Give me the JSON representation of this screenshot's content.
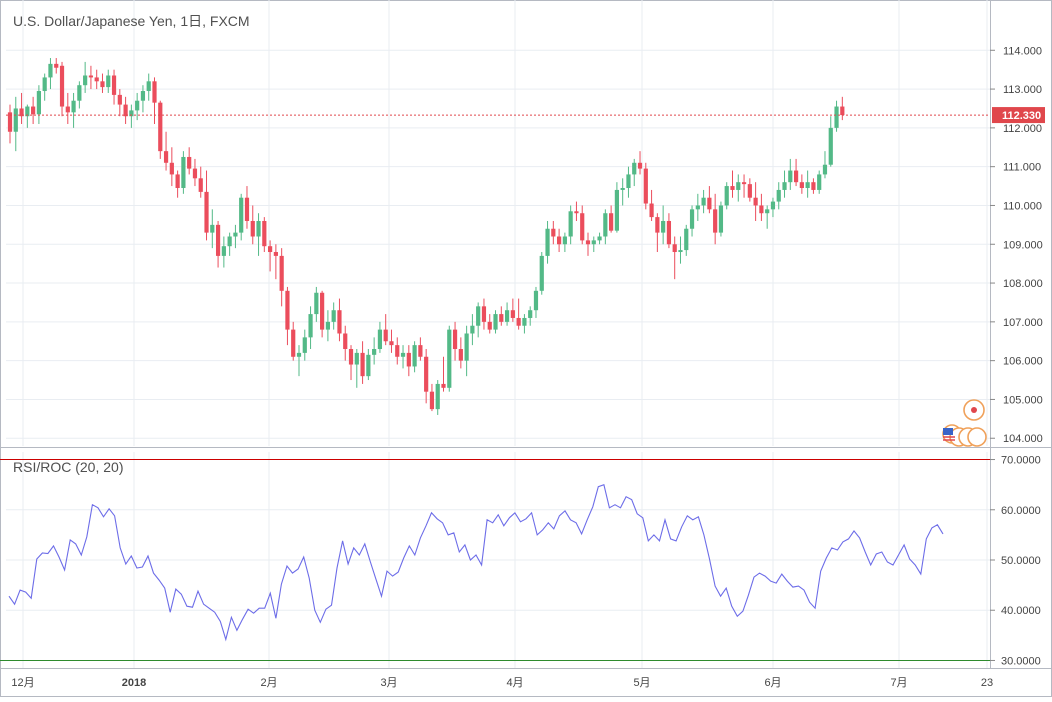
{
  "title": "U.S. Dollar/Japanese Yen, 1日, FXCM",
  "last_price_label": "112.330",
  "colors": {
    "up": "#53b987",
    "down": "#eb4d5c",
    "grid": "#e9edf2",
    "rsi_line": "#6d6de8",
    "overbought": "#cc0000",
    "oversold": "#2e8b2e",
    "last_price": "#e0474c"
  },
  "chart_data": [
    {
      "type": "candlestick",
      "title": "U.S. Dollar/Japanese Yen, 1日, FXCM",
      "ylim": [
        103.8,
        114.6
      ],
      "y_ticks": [
        "114.000",
        "113.000",
        "112.000",
        "111.000",
        "110.000",
        "109.000",
        "108.000",
        "107.000",
        "106.000",
        "105.000",
        "104.000"
      ],
      "x_tick_labels": [
        "12月",
        "2018",
        "2月",
        "3月",
        "4月",
        "5月",
        "6月",
        "7月",
        "23"
      ],
      "last_price": 112.33,
      "grid": true,
      "candles": [
        [
          112.4,
          112.6,
          111.6,
          111.9
        ],
        [
          111.9,
          112.8,
          111.4,
          112.5
        ],
        [
          112.5,
          112.9,
          112.1,
          112.3
        ],
        [
          112.3,
          112.6,
          112.0,
          112.55
        ],
        [
          112.55,
          112.8,
          112.1,
          112.35
        ],
        [
          112.35,
          113.1,
          112.1,
          112.95
        ],
        [
          112.95,
          113.4,
          112.7,
          113.3
        ],
        [
          113.3,
          113.8,
          113.0,
          113.65
        ],
        [
          113.65,
          113.8,
          113.4,
          113.55
        ],
        [
          113.6,
          113.7,
          112.3,
          112.55
        ],
        [
          112.55,
          112.9,
          112.1,
          112.4
        ],
        [
          112.4,
          112.9,
          112.0,
          112.7
        ],
        [
          112.7,
          113.2,
          112.5,
          113.1
        ],
        [
          113.1,
          113.7,
          112.9,
          113.35
        ],
        [
          113.35,
          113.6,
          113.0,
          113.3
        ],
        [
          113.3,
          113.5,
          113.0,
          113.2
        ],
        [
          113.2,
          113.4,
          112.9,
          113.05
        ],
        [
          113.05,
          113.5,
          112.9,
          113.35
        ],
        [
          113.35,
          113.5,
          112.6,
          112.85
        ],
        [
          112.85,
          113.0,
          112.3,
          112.6
        ],
        [
          112.6,
          112.8,
          112.1,
          112.3
        ],
        [
          112.3,
          112.6,
          112.0,
          112.45
        ],
        [
          112.45,
          112.9,
          112.2,
          112.7
        ],
        [
          112.7,
          113.1,
          112.4,
          112.95
        ],
        [
          112.95,
          113.4,
          112.7,
          113.2
        ],
        [
          113.2,
          113.3,
          112.1,
          112.65
        ],
        [
          112.65,
          112.7,
          111.2,
          111.4
        ],
        [
          111.4,
          111.9,
          110.9,
          111.1
        ],
        [
          111.1,
          111.5,
          110.5,
          110.8
        ],
        [
          110.8,
          110.9,
          110.2,
          110.45
        ],
        [
          110.45,
          111.4,
          110.3,
          111.25
        ],
        [
          111.25,
          111.5,
          110.8,
          110.95
        ],
        [
          110.95,
          111.2,
          110.5,
          110.7
        ],
        [
          110.7,
          111.0,
          110.2,
          110.35
        ],
        [
          110.35,
          110.9,
          109.1,
          109.3
        ],
        [
          109.3,
          109.9,
          108.9,
          109.5
        ],
        [
          109.5,
          109.6,
          108.4,
          108.7
        ],
        [
          108.7,
          109.2,
          108.4,
          108.95
        ],
        [
          108.95,
          109.3,
          108.7,
          109.2
        ],
        [
          109.2,
          109.5,
          108.9,
          109.3
        ],
        [
          109.3,
          110.3,
          109.1,
          110.2
        ],
        [
          110.2,
          110.5,
          109.4,
          109.6
        ],
        [
          109.6,
          110.0,
          109.0,
          109.2
        ],
        [
          109.2,
          109.8,
          108.7,
          109.6
        ],
        [
          109.6,
          109.7,
          108.8,
          108.95
        ],
        [
          108.95,
          109.1,
          108.3,
          108.8
        ],
        [
          108.8,
          109.0,
          108.1,
          108.7
        ],
        [
          108.7,
          108.9,
          107.4,
          107.8
        ],
        [
          107.8,
          107.9,
          106.4,
          106.8
        ],
        [
          106.8,
          107.0,
          106.0,
          106.1
        ],
        [
          106.1,
          106.4,
          105.6,
          106.2
        ],
        [
          106.2,
          106.8,
          106.0,
          106.6
        ],
        [
          106.6,
          107.4,
          106.3,
          107.2
        ],
        [
          107.2,
          107.9,
          107.0,
          107.75
        ],
        [
          107.75,
          107.8,
          106.6,
          106.8
        ],
        [
          106.8,
          107.3,
          106.5,
          107.0
        ],
        [
          107.0,
          107.5,
          106.8,
          107.3
        ],
        [
          107.3,
          107.6,
          106.5,
          106.7
        ],
        [
          106.7,
          106.9,
          106.0,
          106.3
        ],
        [
          106.3,
          106.4,
          105.5,
          105.9
        ],
        [
          105.9,
          106.3,
          105.3,
          106.2
        ],
        [
          106.2,
          106.5,
          105.4,
          105.6
        ],
        [
          105.6,
          106.3,
          105.5,
          106.15
        ],
        [
          106.15,
          106.6,
          105.9,
          106.3
        ],
        [
          106.3,
          107.0,
          106.2,
          106.8
        ],
        [
          106.8,
          107.2,
          106.4,
          106.5
        ],
        [
          106.5,
          106.8,
          106.2,
          106.4
        ],
        [
          106.4,
          106.6,
          105.9,
          106.1
        ],
        [
          106.1,
          106.4,
          105.8,
          106.2
        ],
        [
          106.2,
          106.4,
          105.6,
          105.85
        ],
        [
          105.85,
          106.5,
          105.7,
          106.4
        ],
        [
          106.4,
          106.6,
          106.0,
          106.1
        ],
        [
          106.1,
          106.3,
          104.9,
          105.2
        ],
        [
          105.2,
          105.4,
          104.7,
          104.75
        ],
        [
          104.75,
          105.5,
          104.6,
          105.4
        ],
        [
          105.4,
          106.1,
          105.2,
          105.3
        ],
        [
          105.3,
          106.9,
          105.2,
          106.8
        ],
        [
          106.8,
          107.0,
          106.0,
          106.3
        ],
        [
          106.3,
          106.6,
          105.8,
          106.0
        ],
        [
          106.0,
          106.9,
          105.6,
          106.7
        ],
        [
          106.7,
          107.2,
          106.4,
          106.9
        ],
        [
          106.9,
          107.5,
          106.6,
          107.4
        ],
        [
          107.4,
          107.6,
          106.8,
          107.0
        ],
        [
          107.0,
          107.2,
          106.7,
          106.8
        ],
        [
          106.8,
          107.3,
          106.7,
          107.2
        ],
        [
          107.2,
          107.4,
          106.9,
          107.0
        ],
        [
          107.0,
          107.5,
          106.9,
          107.3
        ],
        [
          107.3,
          107.6,
          107.0,
          107.1
        ],
        [
          107.1,
          107.6,
          106.8,
          106.9
        ],
        [
          106.9,
          107.2,
          106.7,
          107.1
        ],
        [
          107.1,
          107.4,
          106.9,
          107.3
        ],
        [
          107.3,
          107.9,
          107.1,
          107.8
        ],
        [
          107.8,
          108.8,
          107.7,
          108.7
        ],
        [
          108.7,
          109.6,
          108.5,
          109.4
        ],
        [
          109.4,
          109.6,
          109.0,
          109.2
        ],
        [
          109.2,
          109.4,
          108.8,
          109.0
        ],
        [
          109.0,
          109.3,
          108.8,
          109.2
        ],
        [
          109.2,
          110.0,
          109.0,
          109.85
        ],
        [
          109.85,
          110.1,
          109.6,
          109.8
        ],
        [
          109.8,
          110.0,
          109.0,
          109.1
        ],
        [
          109.1,
          109.3,
          108.7,
          109.0
        ],
        [
          109.0,
          109.2,
          108.8,
          109.1
        ],
        [
          109.1,
          109.3,
          109.0,
          109.2
        ],
        [
          109.2,
          109.9,
          109.0,
          109.8
        ],
        [
          109.8,
          110.0,
          109.3,
          109.35
        ],
        [
          109.35,
          110.6,
          109.3,
          110.4
        ],
        [
          110.4,
          110.7,
          110.0,
          110.45
        ],
        [
          110.45,
          111.0,
          110.2,
          110.8
        ],
        [
          110.8,
          111.2,
          110.5,
          111.1
        ],
        [
          111.1,
          111.4,
          110.8,
          110.95
        ],
        [
          110.95,
          111.1,
          109.9,
          110.05
        ],
        [
          110.05,
          110.4,
          109.6,
          109.7
        ],
        [
          109.7,
          109.8,
          108.8,
          109.3
        ],
        [
          109.3,
          110.0,
          109.0,
          109.6
        ],
        [
          109.6,
          109.8,
          108.9,
          109.0
        ],
        [
          109.0,
          109.2,
          108.1,
          108.8
        ],
        [
          108.8,
          109.2,
          108.5,
          108.85
        ],
        [
          108.85,
          109.5,
          108.7,
          109.4
        ],
        [
          109.4,
          110.0,
          109.2,
          109.9
        ],
        [
          109.9,
          110.3,
          109.6,
          110.0
        ],
        [
          110.0,
          110.4,
          109.8,
          110.2
        ],
        [
          110.2,
          110.5,
          109.8,
          109.9
        ],
        [
          109.9,
          110.3,
          109.0,
          109.3
        ],
        [
          109.3,
          110.1,
          109.2,
          110.0
        ],
        [
          110.0,
          110.6,
          109.9,
          110.5
        ],
        [
          110.5,
          110.9,
          110.2,
          110.4
        ],
        [
          110.4,
          110.8,
          110.1,
          110.6
        ],
        [
          110.6,
          110.8,
          110.2,
          110.55
        ],
        [
          110.55,
          110.7,
          110.1,
          110.2
        ],
        [
          110.2,
          110.6,
          109.6,
          110.0
        ],
        [
          110.0,
          110.3,
          109.6,
          109.8
        ],
        [
          109.8,
          110.0,
          109.4,
          109.9
        ],
        [
          109.9,
          110.2,
          109.7,
          110.1
        ],
        [
          110.1,
          110.6,
          109.9,
          110.4
        ],
        [
          110.4,
          110.9,
          110.2,
          110.6
        ],
        [
          110.6,
          111.2,
          110.4,
          110.9
        ],
        [
          110.9,
          111.2,
          110.5,
          110.6
        ],
        [
          110.6,
          110.8,
          110.3,
          110.45
        ],
        [
          110.45,
          110.9,
          110.2,
          110.6
        ],
        [
          110.6,
          110.7,
          110.3,
          110.4
        ],
        [
          110.4,
          110.9,
          110.3,
          110.8
        ],
        [
          110.8,
          111.4,
          110.7,
          111.05
        ],
        [
          111.05,
          112.3,
          111.0,
          112.0
        ],
        [
          112.0,
          112.7,
          111.9,
          112.55
        ],
        [
          112.55,
          112.8,
          112.2,
          112.33
        ]
      ]
    },
    {
      "type": "line",
      "title": "RSI/ROC (20, 20)",
      "ylim": [
        28.5,
        71.5
      ],
      "y_ticks": [
        "70.0000",
        "60.0000",
        "50.0000",
        "40.0000",
        "30.0000"
      ],
      "levels": [
        70,
        30
      ],
      "series": [
        {
          "values": [
            42.8,
            41.2,
            44.0,
            43.6,
            42.4,
            50.2,
            51.4,
            51.3,
            52.8,
            50.6,
            48.0,
            54.0,
            53.2,
            51.0,
            54.6,
            61.0,
            60.4,
            58.6,
            60.2,
            58.8,
            52.4,
            49.2,
            50.8,
            48.4,
            48.6,
            50.8,
            47.4,
            46.0,
            44.4,
            39.6,
            44.2,
            43.2,
            40.8,
            40.6,
            43.8,
            41.2,
            40.4,
            39.6,
            37.8,
            34.2,
            38.6,
            36.0,
            38.2,
            40.2,
            39.4,
            40.4,
            40.4,
            43.4,
            38.4,
            45.2,
            48.8,
            47.4,
            48.2,
            50.6,
            46.4,
            40.0,
            37.6,
            40.2,
            41.0,
            48.4,
            53.8,
            49.2,
            52.4,
            51.0,
            53.2,
            49.6,
            46.2,
            42.8,
            47.8,
            46.8,
            47.6,
            50.4,
            52.8,
            51.0,
            54.4,
            56.8,
            59.4,
            58.2,
            57.4,
            55.0,
            55.4,
            51.6,
            53.0,
            50.0,
            51.0,
            49.0,
            58.0,
            57.4,
            59.0,
            56.8,
            58.4,
            59.4,
            57.6,
            58.2,
            59.4,
            55.0,
            56.0,
            57.4,
            56.2,
            58.8,
            59.8,
            58.0,
            57.4,
            55.2,
            58.0,
            60.6,
            64.6,
            65.0,
            60.4,
            61.0,
            60.4,
            62.6,
            62.0,
            59.2,
            58.4,
            53.8,
            55.0,
            53.8,
            58.0,
            54.2,
            53.8,
            56.6,
            58.8,
            58.0,
            58.6,
            55.0,
            50.2,
            44.8,
            42.8,
            44.4,
            40.8,
            38.8,
            39.8,
            43.0,
            46.6,
            47.4,
            46.8,
            45.8,
            45.4,
            47.2,
            45.8,
            44.6,
            44.8,
            44.0,
            41.6,
            40.4,
            47.8,
            50.4,
            52.4,
            52.0,
            53.6,
            54.2,
            55.8,
            54.4,
            51.6,
            49.0,
            51.2,
            51.6,
            49.6,
            49.0,
            51.0,
            53.0,
            50.2,
            49.0,
            47.2,
            54.2,
            56.4,
            57.0,
            55.2
          ]
        }
      ]
    }
  ]
}
